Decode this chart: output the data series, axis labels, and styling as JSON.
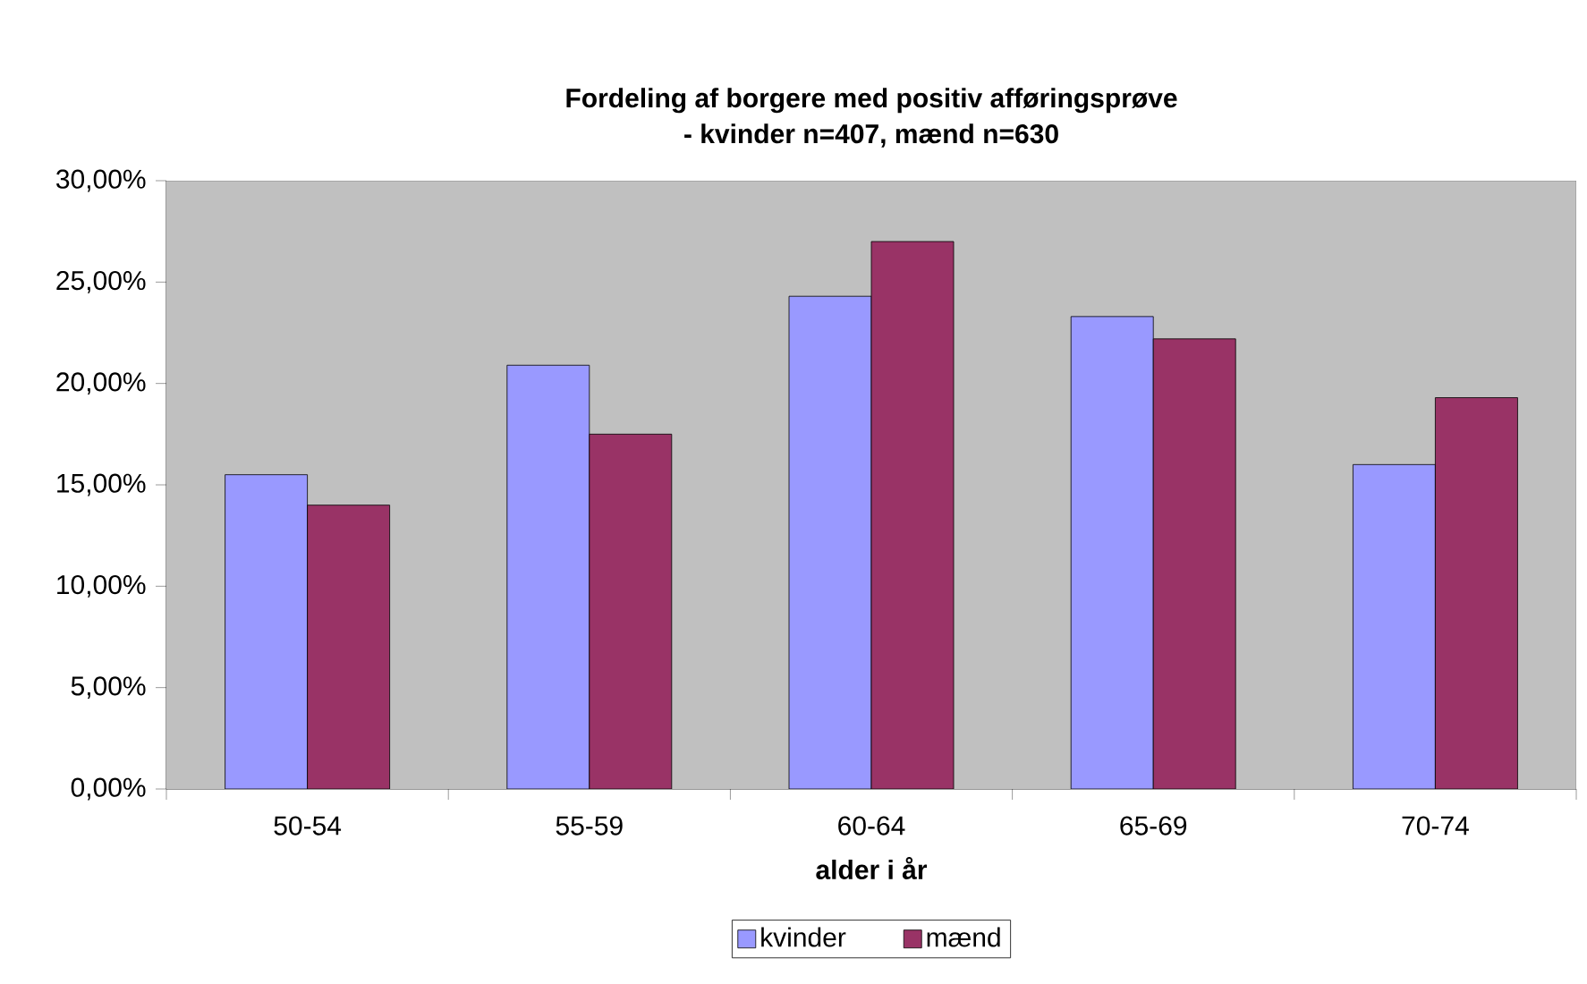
{
  "chart_data": {
    "type": "bar",
    "title": "Fordeling af borgere med positiv afføringsprøve",
    "subtitle": "- kvinder n=407, mænd n=630",
    "xlabel": "alder i år",
    "categories": [
      "50-54",
      "55-59",
      "60-64",
      "65-69",
      "70-74"
    ],
    "series": [
      {
        "name": "kvinder",
        "color": "#9999ff",
        "values": [
          15.5,
          20.9,
          24.3,
          23.3,
          16.0
        ]
      },
      {
        "name": "mænd",
        "color": "#993366",
        "values": [
          14.0,
          17.5,
          27.0,
          22.2,
          19.3
        ]
      }
    ],
    "ylim": [
      0,
      30
    ],
    "yticks": [
      {
        "value": 0,
        "label": "0,00%"
      },
      {
        "value": 5,
        "label": "5,00%"
      },
      {
        "value": 10,
        "label": "10,00%"
      },
      {
        "value": 15,
        "label": "15,00%"
      },
      {
        "value": 20,
        "label": "20,00%"
      },
      {
        "value": 25,
        "label": "25,00%"
      },
      {
        "value": 30,
        "label": "30,00%"
      }
    ],
    "grid": false,
    "legend": "bottom"
  }
}
